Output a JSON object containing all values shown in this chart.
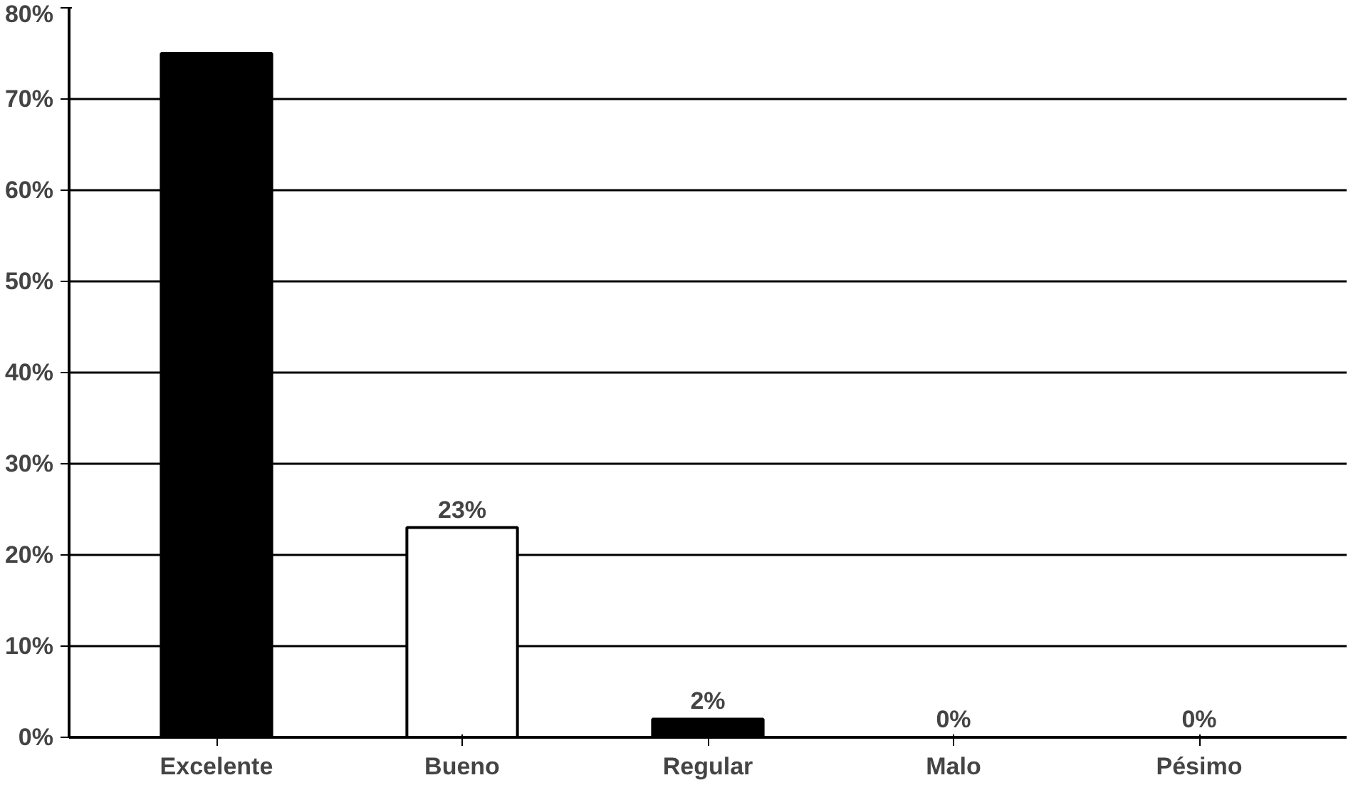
{
  "chart_data": {
    "type": "bar",
    "categories": [
      "Excelente",
      "Bueno",
      "Regular",
      "Malo",
      "Pésimo"
    ],
    "values": [
      75,
      23,
      2,
      0,
      0
    ],
    "colors": [
      "#000000",
      "#ffffff",
      "#000000",
      "#000000",
      "#000000"
    ],
    "value_labels": [
      null,
      "23%",
      "2%",
      "0%",
      "0%"
    ],
    "ylim": [
      0,
      80
    ],
    "yticks": [
      {
        "value": 0,
        "label": "0%"
      },
      {
        "value": 10,
        "label": "10%"
      },
      {
        "value": 20,
        "label": "20%"
      },
      {
        "value": 30,
        "label": "30%"
      },
      {
        "value": 40,
        "label": "40%"
      },
      {
        "value": 50,
        "label": "50%"
      },
      {
        "value": 60,
        "label": "60%"
      },
      {
        "value": 70,
        "label": "70%"
      },
      {
        "value": 80,
        "label": "80%"
      }
    ],
    "grid": "y"
  }
}
